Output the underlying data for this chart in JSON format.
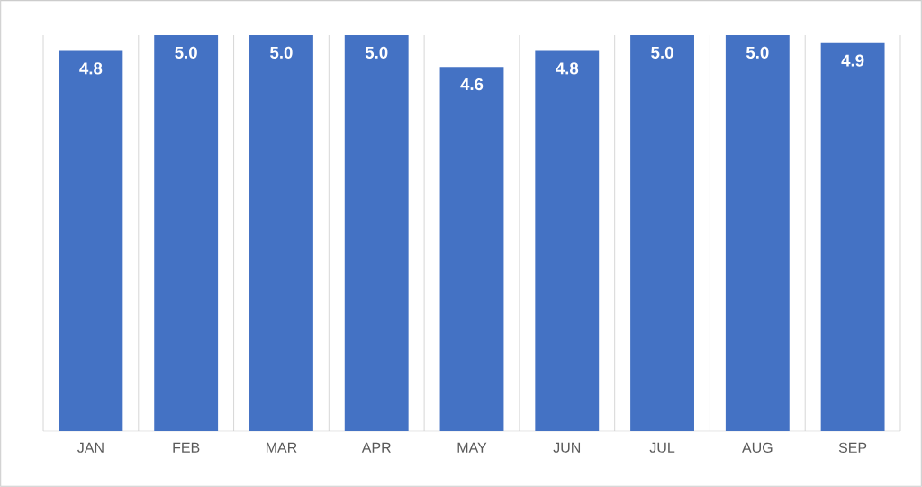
{
  "chart_data": {
    "type": "bar",
    "categories": [
      "JAN",
      "FEB",
      "MAR",
      "APR",
      "MAY",
      "JUN",
      "JUL",
      "AUG",
      "SEP"
    ],
    "values": [
      4.8,
      5.0,
      5.0,
      5.0,
      4.6,
      4.8,
      5.0,
      5.0,
      4.9
    ],
    "value_labels": [
      "4.8",
      "5.0",
      "5.0",
      "5.0",
      "4.6",
      "4.8",
      "5.0",
      "5.0",
      "4.9"
    ],
    "color": "#4472c4",
    "grid": "x"
  }
}
